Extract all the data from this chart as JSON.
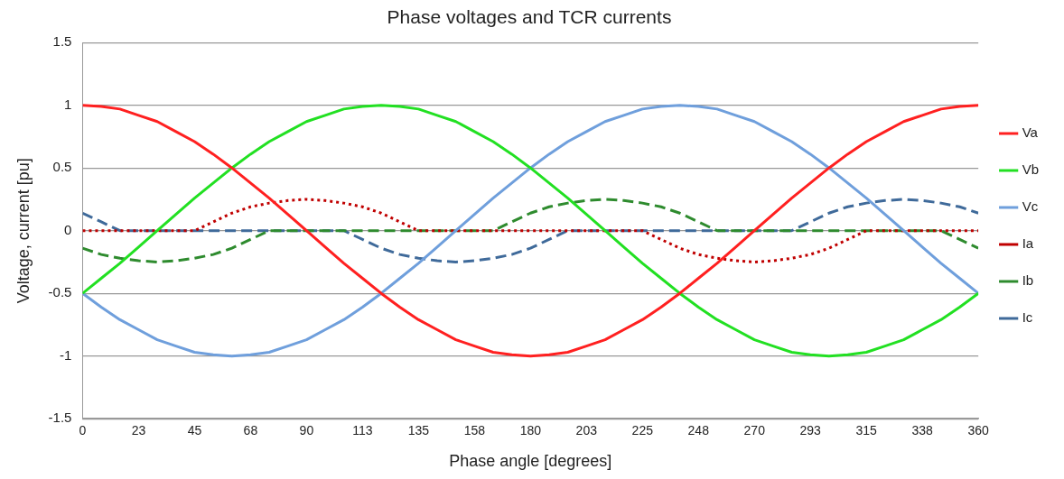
{
  "chart_data": {
    "type": "line",
    "title": "Phase voltages and TCR currents",
    "xlabel": "Phase angle [degrees]",
    "ylabel": "Voltage, current [pu]",
    "x": [
      0,
      7.5,
      15,
      22.5,
      30,
      37.5,
      45,
      52.5,
      60,
      67.5,
      75,
      82.5,
      90,
      97.5,
      105,
      112.5,
      120,
      127.5,
      135,
      142.5,
      150,
      157.5,
      165,
      172.5,
      180,
      187.5,
      195,
      202.5,
      210,
      217.5,
      225,
      232.5,
      240,
      247.5,
      255,
      262.5,
      270,
      277.5,
      285,
      292.5,
      300,
      307.5,
      315,
      322.5,
      330,
      337.5,
      345,
      352.5,
      360
    ],
    "xlim": [
      0,
      360
    ],
    "xticks": [
      0,
      {
        "value": 22.5,
        "label": "23"
      },
      45,
      {
        "value": 67.5,
        "label": "68"
      },
      90,
      {
        "value": 112.5,
        "label": "113"
      },
      135,
      {
        "value": 157.5,
        "label": "158"
      },
      180,
      {
        "value": 202.5,
        "label": "203"
      },
      225,
      {
        "value": 247.5,
        "label": "248"
      },
      270,
      {
        "value": 292.5,
        "label": "293"
      },
      315,
      {
        "value": 337.5,
        "label": "338"
      },
      360
    ],
    "ylim": [
      -1.5,
      1.5
    ],
    "yticks": [
      -1.5,
      -1,
      -0.5,
      0,
      0.5,
      1,
      1.5
    ],
    "grid": "y",
    "legend": "right",
    "marker": "none",
    "series": [
      {
        "name": "Va",
        "color": "#ff2020",
        "line_style": "solid",
        "values": [
          1,
          0.99,
          0.97,
          0.92,
          0.87,
          0.79,
          0.71,
          0.61,
          0.5,
          0.38,
          0.26,
          0.13,
          0,
          -0.13,
          -0.26,
          -0.38,
          -0.5,
          -0.61,
          -0.71,
          -0.79,
          -0.87,
          -0.92,
          -0.97,
          -0.99,
          -1,
          -0.99,
          -0.97,
          -0.92,
          -0.87,
          -0.79,
          -0.71,
          -0.61,
          -0.5,
          -0.38,
          -0.26,
          -0.13,
          0,
          0.13,
          0.26,
          0.38,
          0.5,
          0.61,
          0.71,
          0.79,
          0.87,
          0.92,
          0.97,
          0.99,
          1
        ]
      },
      {
        "name": "Vb",
        "color": "#22e022",
        "line_style": "solid",
        "values": [
          -0.5,
          -0.38,
          -0.26,
          -0.13,
          0,
          0.13,
          0.26,
          0.38,
          0.5,
          0.61,
          0.71,
          0.79,
          0.87,
          0.92,
          0.97,
          0.99,
          1,
          0.99,
          0.97,
          0.92,
          0.87,
          0.79,
          0.71,
          0.61,
          0.5,
          0.38,
          0.26,
          0.13,
          0,
          -0.13,
          -0.26,
          -0.38,
          -0.5,
          -0.61,
          -0.71,
          -0.79,
          -0.87,
          -0.92,
          -0.97,
          -0.99,
          -1,
          -0.99,
          -0.97,
          -0.92,
          -0.87,
          -0.79,
          -0.71,
          -0.61,
          -0.5
        ]
      },
      {
        "name": "Vc",
        "color": "#6f9fdc",
        "line_style": "solid",
        "values": [
          -0.5,
          -0.61,
          -0.71,
          -0.79,
          -0.87,
          -0.92,
          -0.97,
          -0.99,
          -1,
          -0.99,
          -0.97,
          -0.92,
          -0.87,
          -0.79,
          -0.71,
          -0.61,
          -0.5,
          -0.38,
          -0.26,
          -0.13,
          0,
          0.13,
          0.26,
          0.38,
          0.5,
          0.61,
          0.71,
          0.79,
          0.87,
          0.92,
          0.97,
          0.99,
          1,
          0.99,
          0.97,
          0.92,
          0.87,
          0.79,
          0.71,
          0.61,
          0.5,
          0.38,
          0.26,
          0.13,
          0,
          -0.13,
          -0.26,
          -0.38,
          -0.5
        ]
      },
      {
        "name": "Ia",
        "color": "#c00000",
        "line_style": "dotted",
        "values": [
          0,
          0,
          0,
          0,
          0,
          0,
          0,
          0.07,
          0.14,
          0.19,
          0.22,
          0.24,
          0.25,
          0.24,
          0.22,
          0.19,
          0.14,
          0.07,
          0,
          0,
          0,
          0,
          0,
          0,
          0,
          0,
          0,
          0,
          0,
          0,
          0,
          -0.07,
          -0.14,
          -0.19,
          -0.22,
          -0.24,
          -0.25,
          -0.24,
          -0.22,
          -0.19,
          -0.14,
          -0.07,
          0,
          0,
          0,
          0,
          0,
          0,
          0
        ]
      },
      {
        "name": "Ib",
        "color": "#2e8b2e",
        "line_style": "dashed",
        "values": [
          -0.14,
          -0.19,
          -0.22,
          -0.24,
          -0.25,
          -0.24,
          -0.22,
          -0.19,
          -0.14,
          -0.07,
          0,
          0,
          0,
          0,
          0,
          0,
          0,
          0,
          0,
          0,
          0,
          0,
          0,
          0.07,
          0.14,
          0.19,
          0.22,
          0.24,
          0.25,
          0.24,
          0.22,
          0.19,
          0.14,
          0.07,
          0,
          0,
          0,
          0,
          0,
          0,
          0,
          0,
          0,
          0,
          0,
          0,
          0,
          -0.07,
          -0.14
        ]
      },
      {
        "name": "Ic",
        "color": "#3f6a9a",
        "line_style": "dashed",
        "values": [
          0.14,
          0.07,
          0,
          0,
          0,
          0,
          0,
          0,
          0,
          0,
          0,
          0,
          0,
          0,
          0,
          -0.07,
          -0.14,
          -0.19,
          -0.22,
          -0.24,
          -0.25,
          -0.24,
          -0.22,
          -0.19,
          -0.14,
          -0.07,
          0,
          0,
          0,
          0,
          0,
          0,
          0,
          0,
          0,
          0,
          0,
          0,
          0,
          0.07,
          0.14,
          0.19,
          0.22,
          0.24,
          0.25,
          0.24,
          0.22,
          0.19,
          0.14
        ]
      }
    ]
  }
}
